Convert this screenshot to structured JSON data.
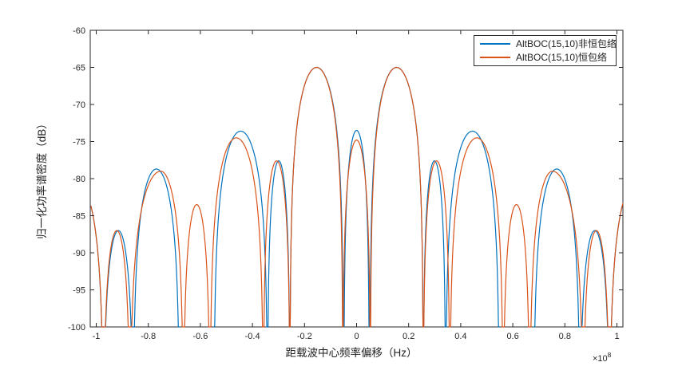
{
  "chart_data": {
    "type": "line",
    "title": "",
    "xlabel": "距载波中心频率偏移（Hz）",
    "ylabel": "归一化功率谱密度（dB）",
    "x_scale_base": "×10",
    "x_scale_exp": "8",
    "xlim": [
      -1.023,
      1.023
    ],
    "x_units": "1e8 Hz",
    "ylim": [
      -100,
      -60
    ],
    "xticks": [
      -1,
      -0.8,
      -0.6,
      -0.4,
      -0.2,
      0,
      0.2,
      0.4,
      0.6,
      0.8,
      1
    ],
    "yticks": [
      -100,
      -95,
      -90,
      -85,
      -80,
      -75,
      -70,
      -65,
      -60
    ],
    "grid": false,
    "legend_position": "top-right",
    "clip_floor_dB": -100,
    "series": [
      {
        "name": "AltBOC(15,10)非恒包络",
        "color": "#0072BD",
        "symmetric_mirror": true,
        "lobes_x1_xpeak_peakdB_x2": [
          [
            -0.049,
            0,
            -73.5,
            0.049
          ],
          [
            0.051,
            0.1535,
            -65.0,
            0.256
          ],
          [
            0.256,
            0.299,
            -77.6,
            0.342
          ],
          [
            0.342,
            0.445,
            -73.6,
            0.548
          ],
          [
            0.68,
            0.769,
            -78.7,
            0.858
          ],
          [
            0.858,
            0.915,
            -87.0,
            0.972
          ],
          [
            0.972,
            1.074,
            -80.3,
            1.176
          ]
        ]
      },
      {
        "name": "AltBOC(15,10)恒包络",
        "color": "#D95319",
        "symmetric_mirror": true,
        "lobes_x1_xpeak_peakdB_x2": [
          [
            -0.053,
            0,
            -74.8,
            0.053
          ],
          [
            0.053,
            0.1535,
            -65.0,
            0.256
          ],
          [
            0.256,
            0.307,
            -77.6,
            0.358
          ],
          [
            0.358,
            0.462,
            -74.5,
            0.563
          ],
          [
            0.563,
            0.614,
            -83.5,
            0.665
          ],
          [
            0.665,
            0.752,
            -79.0,
            0.87
          ],
          [
            0.87,
            0.921,
            -87.0,
            0.972
          ],
          [
            0.972,
            1.074,
            -80.3,
            1.176
          ]
        ]
      }
    ],
    "key_features": {
      "main_lobe_peak_x_1e8": [
        -0.153,
        0.153
      ],
      "main_lobe_peak_dB": -65,
      "center_lobe_peak_dB_nonconstant": -73.5,
      "center_lobe_peak_dB_constant": -74.8,
      "value_at_plot_edges_dB": -83.3
    }
  }
}
